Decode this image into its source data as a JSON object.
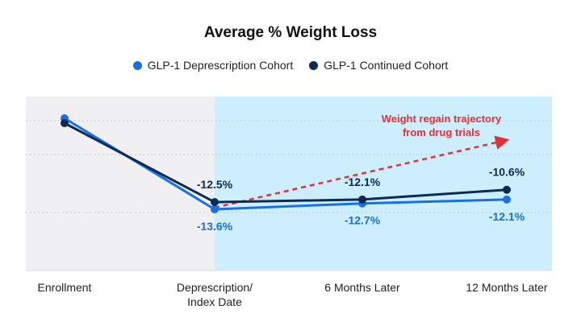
{
  "chart_data": {
    "type": "line",
    "title": "Average % Weight Loss",
    "categories": [
      "Enrollment",
      "Deprescription/\nIndex Date",
      "6 Months Later",
      "12 Months Later"
    ],
    "series": [
      {
        "name": "GLP-1 Deprescription Cohort",
        "color": "#1a6fe3",
        "values": [
          0,
          -13.6,
          -12.7,
          -12.1
        ],
        "labels": [
          "",
          "-13.6%",
          "-12.7%",
          "-12.1%"
        ]
      },
      {
        "name": "GLP-1 Continued Cohort",
        "color": "#0d2b52",
        "values": [
          0,
          -12.5,
          -12.1,
          -10.6
        ],
        "labels": [
          "",
          "-12.5%",
          "-12.1%",
          "-10.6%"
        ]
      }
    ],
    "annotation": {
      "text_line1": "Weight regain trajectory",
      "text_line2": "from drug trials",
      "color": "#e0303a"
    },
    "shaded_region_color": "#cdeefc",
    "baseline_region_color": "#f0f0f2",
    "grid": true
  }
}
